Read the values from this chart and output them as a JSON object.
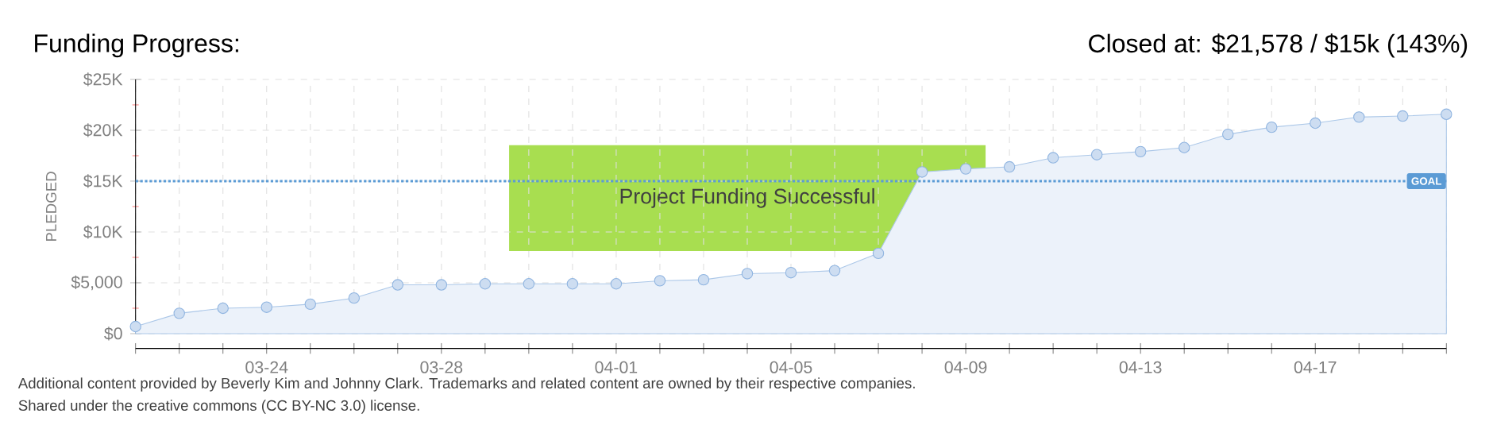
{
  "chart_data": {
    "type": "area",
    "title": "Funding Progress:",
    "subtitle": "Closed at: $21,578 / $15k (143%)",
    "ylabel": "PLEDGED",
    "categories": [
      null,
      null,
      null,
      "03-24",
      null,
      null,
      null,
      "03-28",
      null,
      null,
      null,
      "04-01",
      null,
      null,
      null,
      "04-05",
      null,
      null,
      null,
      "04-09",
      null,
      null,
      null,
      "04-13",
      null,
      null,
      null,
      "04-17",
      null,
      null,
      null
    ],
    "series": [
      {
        "color": "#8fb4e0",
        "values": [
          700,
          2000,
          2500,
          2600,
          2900,
          3500,
          4800,
          4800,
          4900,
          4900,
          4900,
          4900,
          5200,
          5300,
          5900,
          6000,
          6200,
          7900,
          15900,
          16200,
          16400,
          17300,
          17600,
          17900,
          18300,
          19600,
          20300,
          20700,
          21300,
          21400,
          21578
        ]
      }
    ],
    "ylim": [
      0,
      25000
    ],
    "yticks": [
      {
        "value": 0,
        "label": "$0"
      },
      {
        "value": 5000,
        "label": "$5,000"
      },
      {
        "value": 10000,
        "label": "$10K"
      },
      {
        "value": 15000,
        "label": "$15K"
      },
      {
        "value": 20000,
        "label": "$20K"
      },
      {
        "value": 25000,
        "label": "$25K"
      }
    ],
    "ref_lines": [
      {
        "axis": "y",
        "value": 15000,
        "label": "GOAL",
        "color": "#5b9bd5",
        "line_style": "dotted"
      }
    ],
    "annotations": [
      "Project Funding Successful",
      "Additional content provided by Beverly Kim and Johnny Clark. Trademarks and related content are owned by their respective companies.",
      "Shared under the creative commons (CC BY-NC 3.0) license."
    ],
    "grid": true,
    "marker": "circle"
  }
}
